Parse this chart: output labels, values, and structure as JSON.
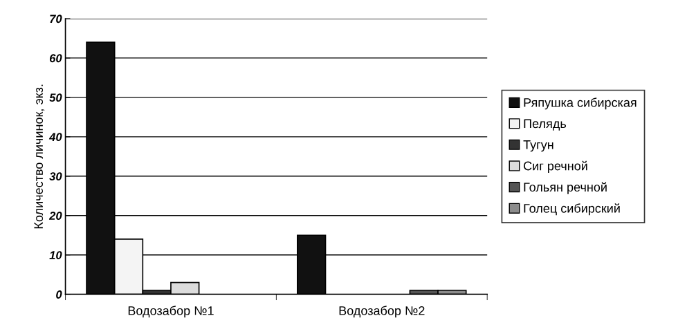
{
  "chart_data": {
    "type": "bar",
    "ylabel": "Количество личинок, экз.",
    "categories": [
      "Водозабор №1",
      "Водозабор №2"
    ],
    "series": [
      {
        "name": "Ряпушка сибирская",
        "color": "#111111",
        "values": [
          64,
          15
        ]
      },
      {
        "name": "Пелядь",
        "color": "#f4f4f4",
        "values": [
          14,
          0
        ]
      },
      {
        "name": "Тугун",
        "color": "#333333",
        "values": [
          1,
          0
        ]
      },
      {
        "name": "Сиг речной",
        "color": "#dcdcdc",
        "values": [
          3,
          0
        ]
      },
      {
        "name": "Гольян речной",
        "color": "#555555",
        "values": [
          0,
          1
        ]
      },
      {
        "name": "Голец сибирский",
        "color": "#8c8c8c",
        "values": [
          0,
          1
        ]
      }
    ],
    "ylim": [
      0,
      70
    ],
    "yticks": [
      0,
      10,
      20,
      30,
      40,
      50,
      60,
      70
    ],
    "grid": "y",
    "legend": "right"
  }
}
